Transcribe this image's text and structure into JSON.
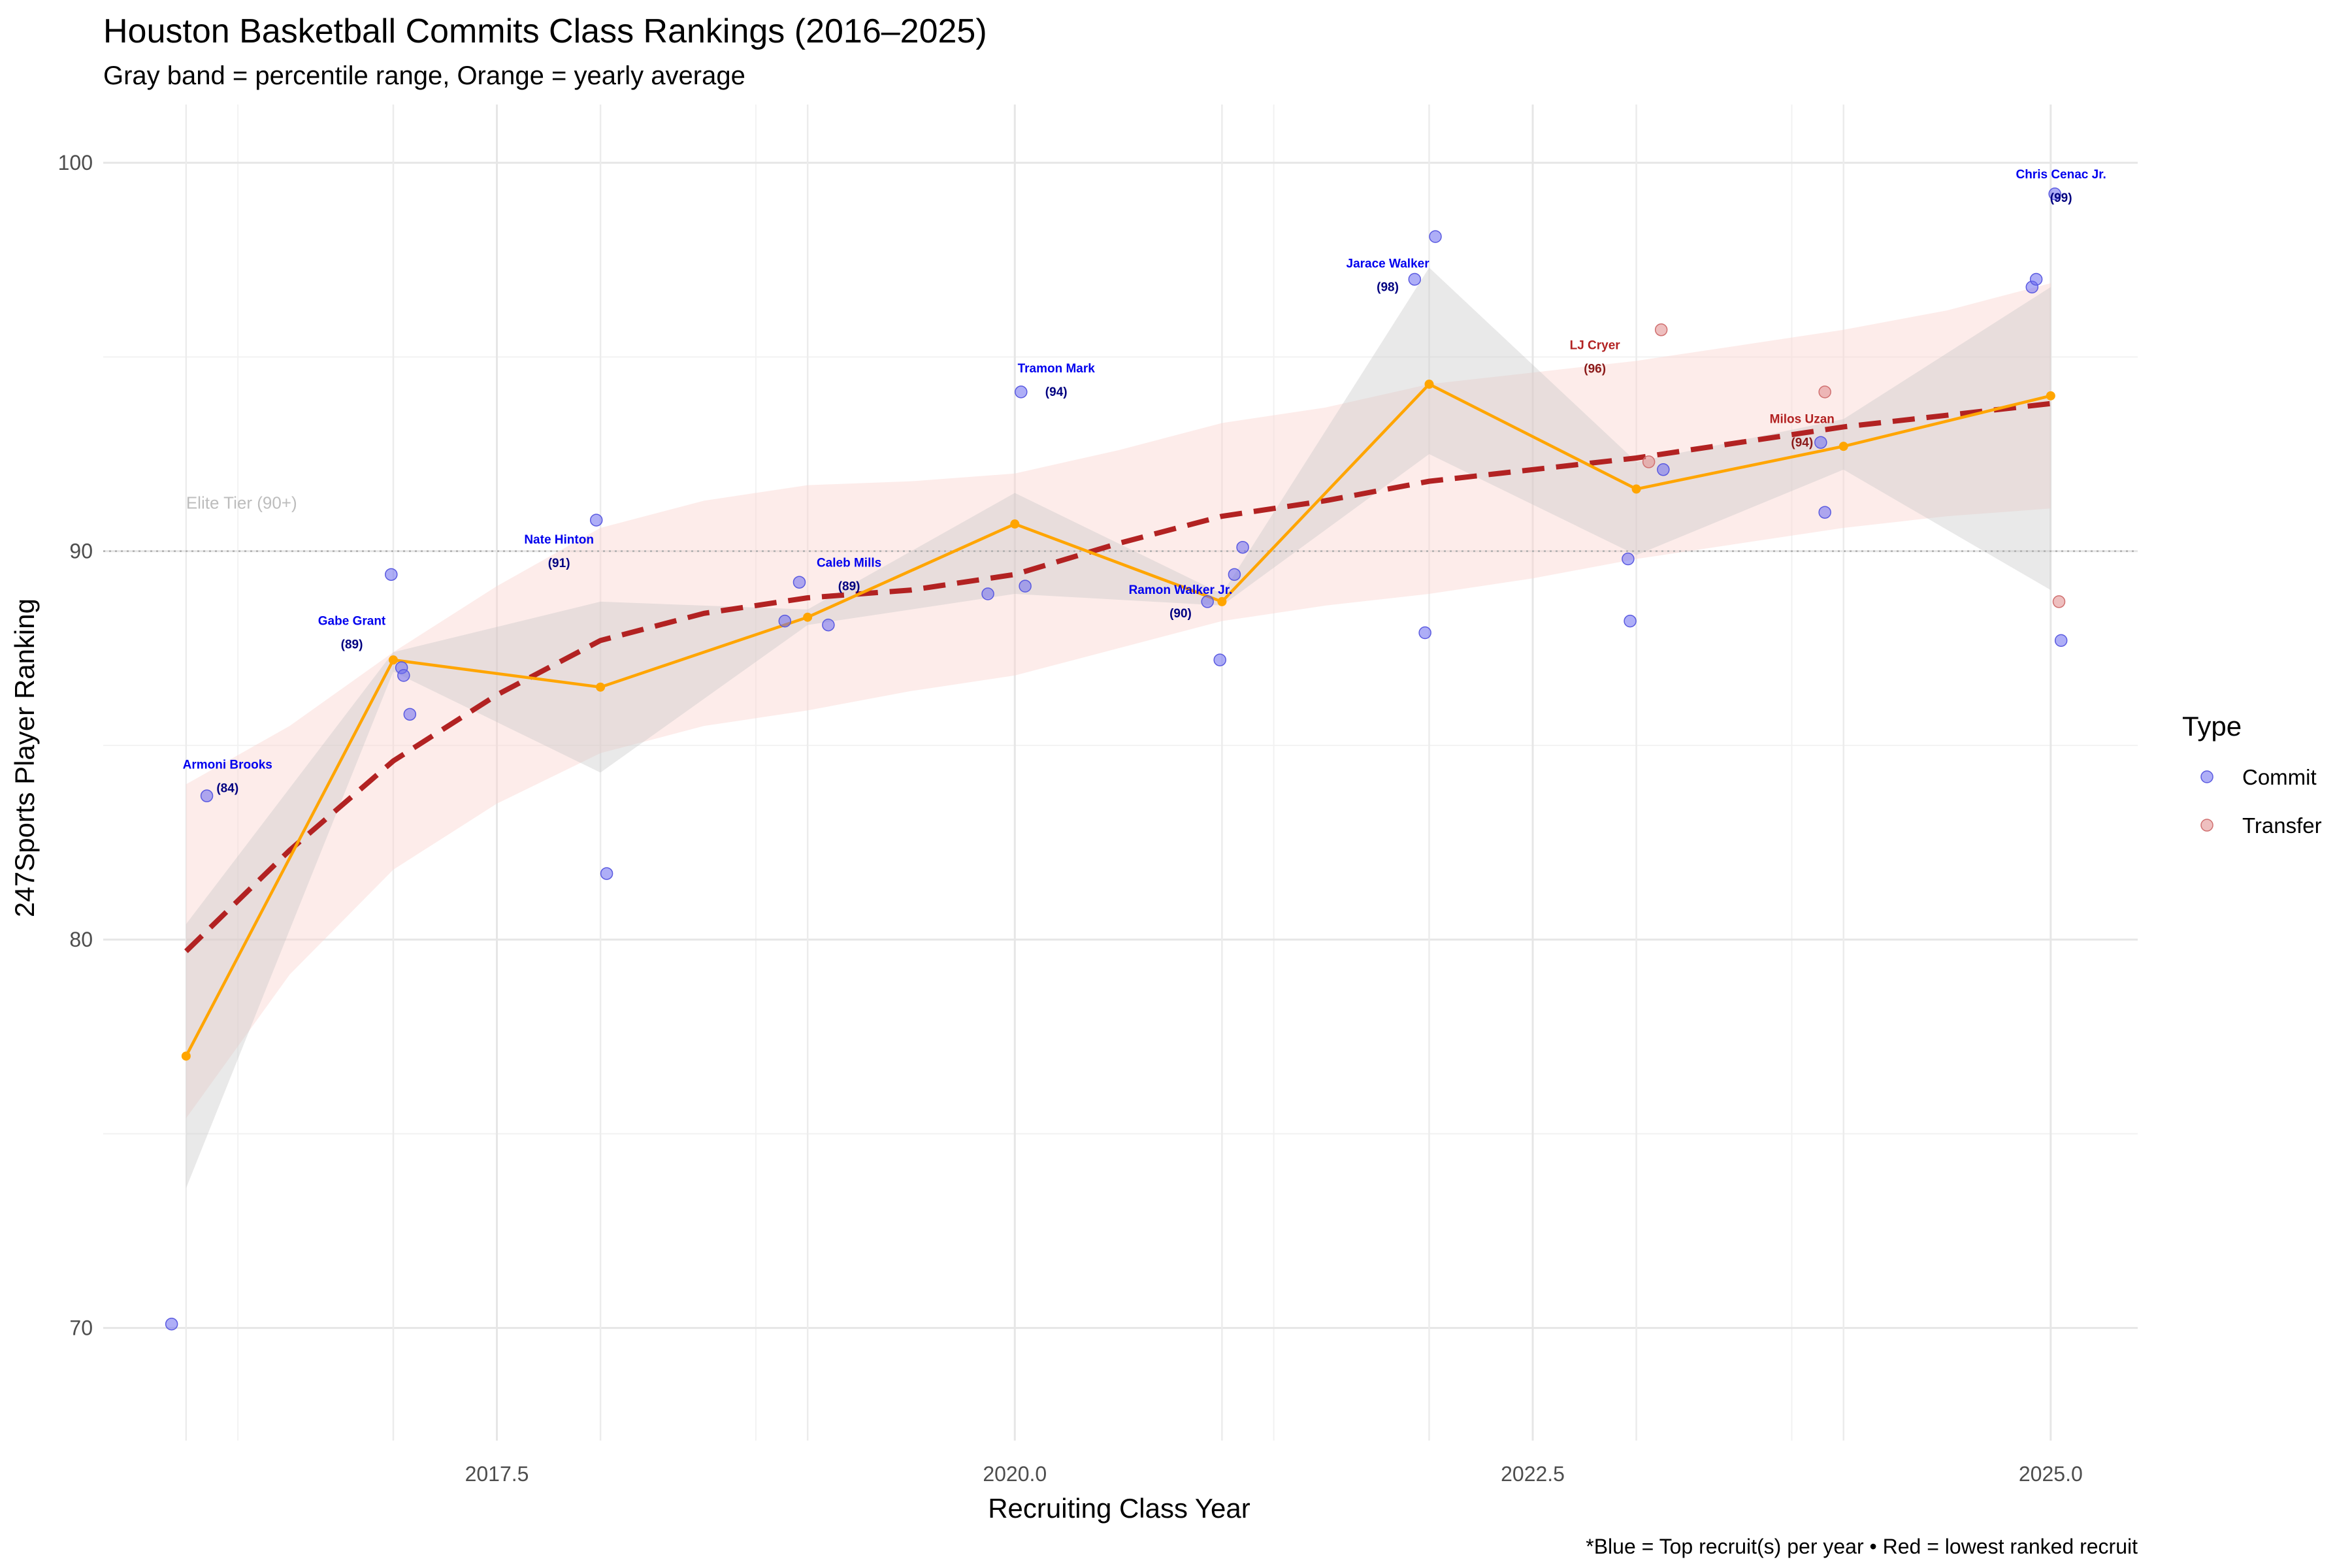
{
  "chart_data": {
    "type": "scatter",
    "title": "Houston Basketball Commits Class Rankings (2016–2025)",
    "subtitle": "Gray band = percentile range, Orange = yearly average",
    "xlabel": "Recruiting Class Year",
    "ylabel": "247Sports Player Ranking",
    "caption": "*Blue = Top recruit(s) per year • Red = lowest ranked recruit",
    "xlim": [
      2015.6,
      2025.42
    ],
    "ylim": [
      67.1,
      101.5
    ],
    "x_ticks": [
      2017.5,
      2020.0,
      2022.5,
      2025.0
    ],
    "x_tick_labels": [
      "2017.5",
      "2020.0",
      "2022.5",
      "2025.0"
    ],
    "y_ticks": [
      70,
      80,
      90,
      100
    ],
    "y_tick_labels": [
      "70",
      "80",
      "90",
      "100"
    ],
    "grid": true,
    "colors": {
      "commit": "#6b6bf0",
      "transfer": "#e08a8a",
      "average": "#ffa500",
      "trend": "#b22222",
      "gray_band": "#c4c4c4",
      "trend_ribbon": "#fbd5d0",
      "label_blue": "#0000ee",
      "label_red": "#b22222"
    },
    "reference_line": {
      "y": 90,
      "label": "Elite Tier (90+)"
    },
    "legend": {
      "title": "Type",
      "position": "right",
      "entries": [
        {
          "label": "Commit",
          "color": "#6b6bf0"
        },
        {
          "label": "Transfer",
          "color": "#e08a8a"
        }
      ]
    },
    "series": [
      {
        "name": "Commit",
        "points": [
          [
            2015.93,
            70.1
          ],
          [
            2016.1,
            83.7
          ],
          [
            2016.99,
            89.4
          ],
          [
            2017.04,
            87.0
          ],
          [
            2017.05,
            86.8
          ],
          [
            2017.08,
            85.8
          ],
          [
            2017.98,
            90.8
          ],
          [
            2018.03,
            81.7
          ],
          [
            2018.89,
            88.2
          ],
          [
            2018.96,
            89.2
          ],
          [
            2019.1,
            88.1
          ],
          [
            2019.87,
            88.9
          ],
          [
            2020.03,
            94.1
          ],
          [
            2020.05,
            89.1
          ],
          [
            2020.93,
            88.7
          ],
          [
            2020.99,
            87.2
          ],
          [
            2021.06,
            89.4
          ],
          [
            2021.1,
            90.1
          ],
          [
            2021.93,
            97.0
          ],
          [
            2021.98,
            87.9
          ],
          [
            2022.03,
            98.1
          ],
          [
            2022.96,
            89.8
          ],
          [
            2022.97,
            88.2
          ],
          [
            2023.13,
            92.1
          ],
          [
            2023.89,
            92.8
          ],
          [
            2023.91,
            91.0
          ],
          [
            2024.91,
            96.8
          ],
          [
            2024.93,
            97.0
          ],
          [
            2025.02,
            99.2
          ],
          [
            2025.05,
            87.7
          ]
        ]
      },
      {
        "name": "Transfer",
        "points": [
          [
            2023.06,
            92.3
          ],
          [
            2023.12,
            95.7
          ],
          [
            2023.91,
            94.1
          ],
          [
            2025.04,
            88.7
          ]
        ]
      }
    ],
    "yearly_average": {
      "x": [
        2016,
        2017,
        2018,
        2019,
        2020,
        2021,
        2022,
        2023,
        2024,
        2025
      ],
      "y": [
        77.0,
        87.2,
        86.5,
        88.3,
        90.7,
        88.7,
        94.3,
        91.6,
        92.7,
        94.0
      ]
    },
    "percentile_band": {
      "x": [
        2016,
        2017,
        2018,
        2019,
        2020,
        2021,
        2022,
        2023,
        2024,
        2025
      ],
      "lower": [
        73.6,
        86.9,
        84.3,
        88.1,
        88.9,
        88.6,
        92.5,
        89.9,
        92.1,
        89.0
      ],
      "upper": [
        80.4,
        87.4,
        88.7,
        88.5,
        91.5,
        88.9,
        97.3,
        92.3,
        93.4,
        96.8
      ]
    },
    "trend": {
      "x": [
        2016,
        2016.5,
        2017,
        2017.5,
        2018,
        2018.5,
        2019,
        2019.5,
        2020,
        2020.5,
        2021,
        2021.5,
        2022,
        2022.5,
        2023,
        2023.5,
        2024,
        2024.5,
        2025
      ],
      "y": [
        79.7,
        82.3,
        84.6,
        86.3,
        87.7,
        88.4,
        88.8,
        89.0,
        89.4,
        90.2,
        90.9,
        91.3,
        91.8,
        92.1,
        92.4,
        92.8,
        93.2,
        93.5,
        93.8
      ],
      "lower": [
        75.4,
        79.1,
        81.8,
        83.5,
        84.8,
        85.5,
        85.9,
        86.4,
        86.8,
        87.5,
        88.2,
        88.6,
        88.9,
        89.3,
        89.8,
        90.2,
        90.6,
        90.9,
        91.1
      ],
      "upper": [
        84.0,
        85.5,
        87.4,
        89.1,
        90.6,
        91.3,
        91.7,
        91.8,
        92.0,
        92.6,
        93.3,
        93.7,
        94.3,
        94.6,
        94.9,
        95.3,
        95.7,
        96.2,
        96.9
      ]
    },
    "annotations": [
      {
        "name": "Armoni Brooks",
        "rating": "(84)",
        "x": 2016.2,
        "y": 84.4,
        "color": "#0000ee"
      },
      {
        "name": "Gabe Grant",
        "rating": "(89)",
        "x": 2016.8,
        "y": 88.1,
        "color": "#0000ee"
      },
      {
        "name": "Nate Hinton",
        "rating": "(91)",
        "x": 2017.8,
        "y": 90.2,
        "color": "#0000ee"
      },
      {
        "name": "Caleb Mills",
        "rating": "(89)",
        "x": 2019.2,
        "y": 89.6,
        "color": "#0000ee"
      },
      {
        "name": "Tramon Mark",
        "rating": "(94)",
        "x": 2020.2,
        "y": 94.6,
        "color": "#0000ee"
      },
      {
        "name": "Ramon Walker Jr.",
        "rating": "(90)",
        "x": 2020.8,
        "y": 88.9,
        "color": "#0000ee"
      },
      {
        "name": "Jarace Walker",
        "rating": "(98)",
        "x": 2021.8,
        "y": 97.3,
        "color": "#0000ee"
      },
      {
        "name": "LJ Cryer",
        "rating": "(96)",
        "x": 2022.8,
        "y": 95.2,
        "color": "#b22222"
      },
      {
        "name": "Milos Uzan",
        "rating": "(94)",
        "x": 2023.8,
        "y": 93.3,
        "color": "#b22222"
      },
      {
        "name": "Chris Cenac Jr.",
        "rating": "(99)",
        "x": 2025.05,
        "y": 99.6,
        "color": "#0000ee"
      }
    ]
  }
}
